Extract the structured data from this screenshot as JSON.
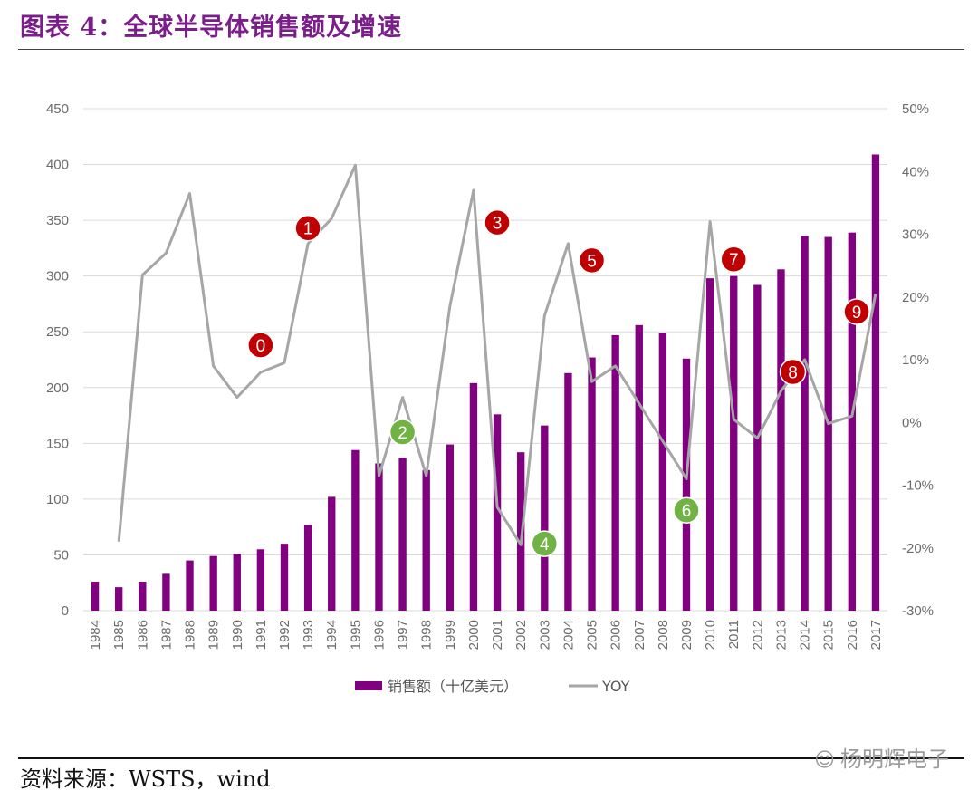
{
  "figure": {
    "title": "图表 4：全球半导体销售额及增速",
    "source": "资料来源：WSTS，wind",
    "watermark": "杨明辉电子"
  },
  "colors": {
    "bar": "#800080",
    "line": "#a6a6a6",
    "grid": "#d9d9d9",
    "red_marker": "#c00000",
    "green_marker": "#70b244"
  },
  "chart_data": {
    "type": "bar+line",
    "categories": [
      "1984",
      "1985",
      "1986",
      "1987",
      "1988",
      "1989",
      "1990",
      "1991",
      "1992",
      "1993",
      "1994",
      "1995",
      "1996",
      "1997",
      "1998",
      "1999",
      "2000",
      "2001",
      "2002",
      "2003",
      "2004",
      "2005",
      "2006",
      "2007",
      "2008",
      "2009",
      "2010",
      "2011",
      "2012",
      "2013",
      "2014",
      "2015",
      "2016",
      "2017"
    ],
    "series": [
      {
        "name": "销售额（十亿美元）",
        "type": "bar",
        "axis": "left",
        "values": [
          26,
          21,
          26,
          33,
          45,
          49,
          51,
          55,
          60,
          77,
          102,
          144,
          132,
          137,
          126,
          149,
          204,
          176,
          142,
          166,
          213,
          227,
          247,
          256,
          249,
          226,
          298,
          300,
          292,
          306,
          336,
          335,
          339,
          409
        ]
      },
      {
        "name": "YOY",
        "type": "line",
        "axis": "right",
        "values": [
          null,
          -19,
          23.5,
          27,
          36.5,
          9,
          4,
          8,
          9.5,
          28.5,
          32.5,
          41,
          -8.5,
          4,
          -8.5,
          18.5,
          37,
          -13.5,
          -19.5,
          17,
          28.5,
          6.5,
          9,
          3,
          -3,
          -9,
          32,
          0.5,
          -2.5,
          5,
          10,
          -0.2,
          1,
          20.5
        ]
      }
    ],
    "y_left": {
      "min": 0,
      "max": 450,
      "ticks": [
        "0",
        "50",
        "100",
        "150",
        "200",
        "250",
        "300",
        "350",
        "400",
        "450"
      ]
    },
    "y_right": {
      "min": -30,
      "max": 50,
      "ticks": [
        "-30%",
        "-20%",
        "-10%",
        "0%",
        "10%",
        "20%",
        "30%",
        "40%",
        "50%"
      ]
    },
    "legend": [
      {
        "label": "销售额（十亿美元）",
        "kind": "bar"
      },
      {
        "label": "YOY",
        "kind": "line"
      }
    ],
    "annotations": [
      {
        "label": "0",
        "color": "red",
        "year": "1991",
        "y_left": 238
      },
      {
        "label": "1",
        "color": "red",
        "year": "1993",
        "y_left": 343
      },
      {
        "label": "2",
        "color": "green",
        "year": "1997",
        "y_left": 160
      },
      {
        "label": "3",
        "color": "red",
        "year": "2001",
        "y_left": 348
      },
      {
        "label": "4",
        "color": "green",
        "year": "2003",
        "y_left": 60
      },
      {
        "label": "5",
        "color": "red",
        "year": "2005",
        "y_left": 314
      },
      {
        "label": "6",
        "color": "green",
        "year": "2009",
        "y_left": 90
      },
      {
        "label": "7",
        "color": "red",
        "year": "2011",
        "y_left": 315
      },
      {
        "label": "8",
        "color": "red",
        "year": "2013.5",
        "y_left": 214
      },
      {
        "label": "9",
        "color": "red",
        "year": "2016.2",
        "y_left": 268
      }
    ]
  }
}
